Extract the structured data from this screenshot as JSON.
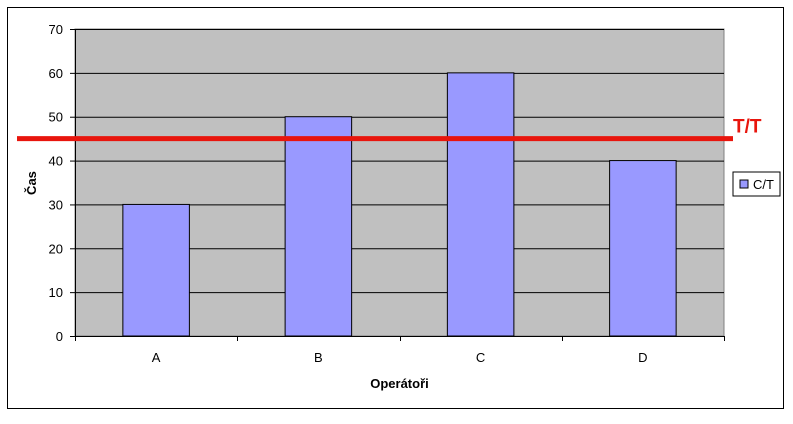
{
  "chart_data": {
    "type": "bar",
    "categories": [
      "A",
      "B",
      "C",
      "D"
    ],
    "series": [
      {
        "name": "C/T",
        "values": [
          30,
          50,
          60,
          40
        ],
        "color": "#9999ff"
      }
    ],
    "title": "",
    "xlabel": "Operátoři",
    "ylabel": "Čas",
    "ylim": [
      0,
      70
    ],
    "yticks": [
      0,
      10,
      20,
      30,
      40,
      50,
      60,
      70
    ],
    "grid": true,
    "plot_background": "#c0c0c0",
    "legend": {
      "position": "right",
      "entries": [
        "C/T"
      ]
    },
    "reference_line": {
      "label": "T/T",
      "value": 45,
      "color": "#e8150d"
    }
  }
}
